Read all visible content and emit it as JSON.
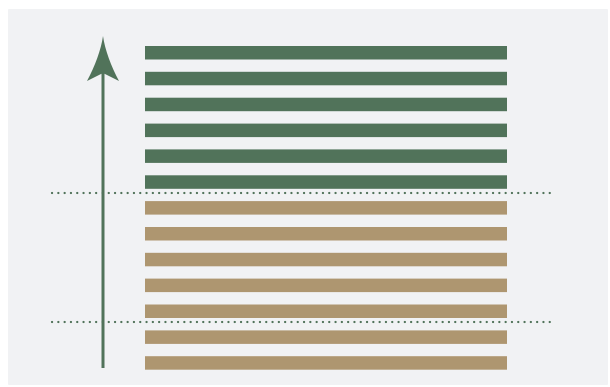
{
  "diagram": {
    "background_color": "#f1f2f4",
    "arrow": {
      "direction": "up",
      "color": "#51735a"
    },
    "upper_group": {
      "color": "#51735a",
      "stripe_count": 6
    },
    "lower_group": {
      "color": "#ae9670",
      "stripe_count": 7
    },
    "dotted_lines": {
      "color": "#51735a",
      "count": 2,
      "style": "dotted"
    }
  }
}
